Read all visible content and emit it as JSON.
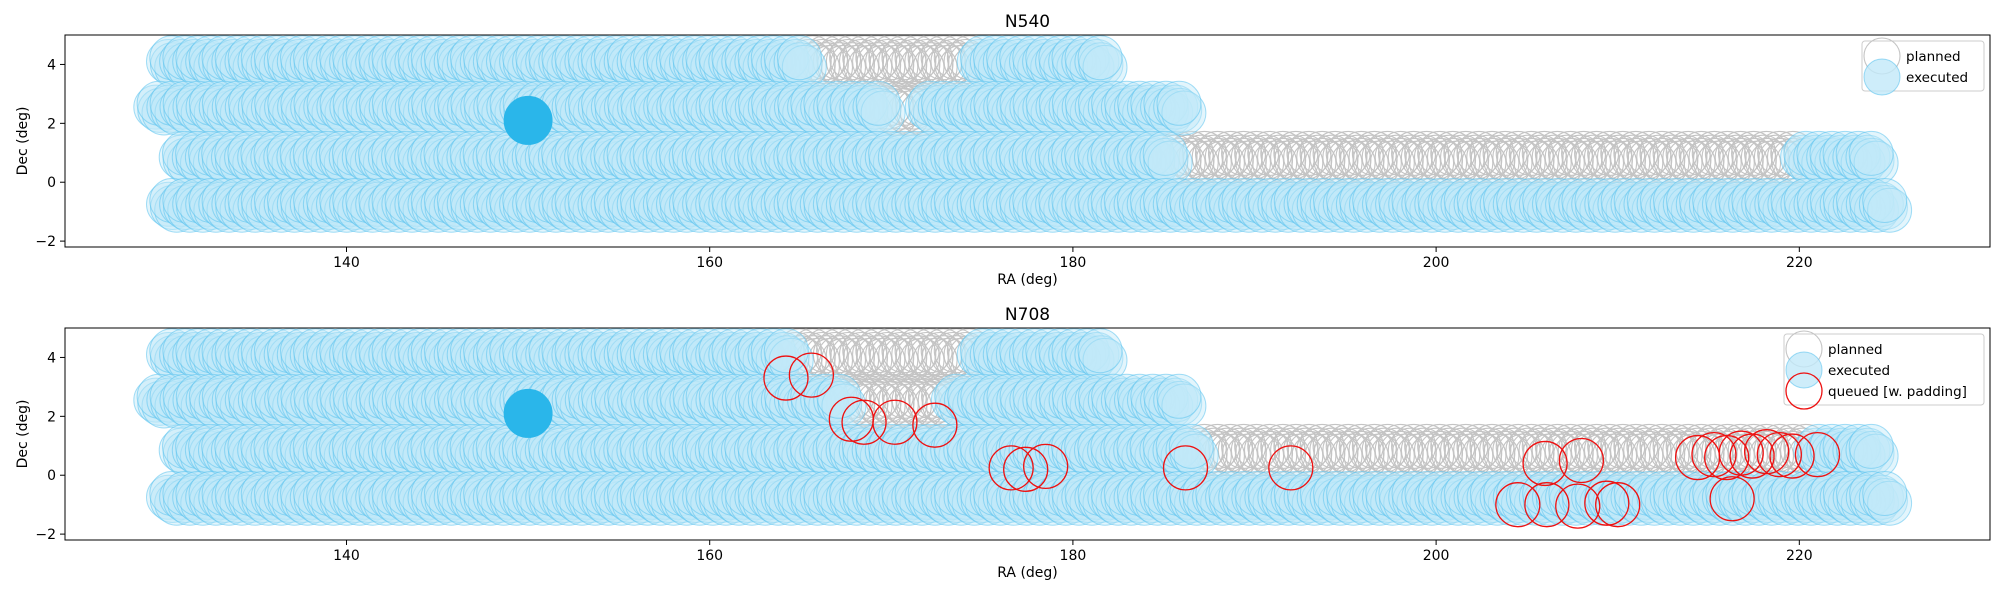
{
  "chart_data": [
    {
      "type": "scatter",
      "title": "N540",
      "xlabel": "RA (deg)",
      "ylabel": "Dec (deg)",
      "xlim": [
        124.5,
        230.5
      ],
      "ylim": [
        -2.2,
        5.0
      ],
      "xticks": [
        140,
        160,
        180,
        200,
        220
      ],
      "yticks": [
        -2,
        0,
        2,
        4
      ],
      "legend_position": "top-right",
      "colors": {
        "planned": "#c4c4c4",
        "executed": "#5bc3ee",
        "executed_fill": "#c2e9f9",
        "highlight": "#2ab6ea"
      },
      "legend": [
        {
          "label": "planned",
          "style": "planned"
        },
        {
          "label": "executed",
          "style": "executed"
        }
      ],
      "rows": [
        {
          "dec": 4.1,
          "ra_start": 130.2,
          "ra_end": 181.8,
          "step": 0.72,
          "executed_ranges": [
            [
              130.2,
              165.0
            ],
            [
              174.6,
              181.8
            ]
          ]
        },
        {
          "dec": 2.55,
          "ra_start": 129.5,
          "ra_end": 186.3,
          "step": 0.72,
          "executed_ranges": [
            [
              129.5,
              169.8
            ],
            [
              171.6,
              186.3
            ]
          ]
        },
        {
          "dec": 0.85,
          "ra_start": 130.9,
          "ra_end": 224.1,
          "step": 0.72,
          "executed_ranges": [
            [
              130.9,
              185.4
            ],
            [
              219.5,
              224.1
            ]
          ]
        },
        {
          "dec": -0.75,
          "ra_start": 130.2,
          "ra_end": 224.8,
          "step": 0.72,
          "executed_ranges": [
            [
              130.2,
              224.8
            ]
          ]
        }
      ],
      "offsets": [
        {
          "dra": 0.0,
          "ddec": 0.0
        },
        {
          "dra": 0.22,
          "ddec": -0.11
        },
        {
          "dra": 0.45,
          "ddec": -0.2
        },
        {
          "dra": 0.18,
          "ddec": 0.13
        }
      ],
      "highlight": {
        "ra": 150.0,
        "dec": 2.1
      },
      "queued": []
    },
    {
      "type": "scatter",
      "title": "N708",
      "xlabel": "RA (deg)",
      "ylabel": "Dec (deg)",
      "xlim": [
        124.5,
        230.5
      ],
      "ylim": [
        -2.2,
        5.0
      ],
      "xticks": [
        140,
        160,
        180,
        200,
        220
      ],
      "yticks": [
        -2,
        0,
        2,
        4
      ],
      "legend_position": "top-right",
      "colors": {
        "planned": "#c4c4c4",
        "executed": "#5bc3ee",
        "executed_fill": "#c2e9f9",
        "highlight": "#2ab6ea",
        "queued": "#ee1111"
      },
      "legend": [
        {
          "label": "planned",
          "style": "planned"
        },
        {
          "label": "executed",
          "style": "executed"
        },
        {
          "label": "queued [w. padding]",
          "style": "queued"
        }
      ],
      "rows": [
        {
          "dec": 4.1,
          "ra_start": 130.2,
          "ra_end": 181.8,
          "step": 0.72,
          "executed_ranges": [
            [
              130.2,
              164.2
            ],
            [
              174.6,
              181.8
            ]
          ]
        },
        {
          "dec": 2.55,
          "ra_start": 129.5,
          "ra_end": 186.3,
          "step": 0.72,
          "executed_ranges": [
            [
              129.5,
              167.2
            ],
            [
              172.8,
              186.3
            ]
          ]
        },
        {
          "dec": 0.85,
          "ra_start": 130.9,
          "ra_end": 224.1,
          "step": 0.72,
          "executed_ranges": [
            [
              130.9,
              186.9
            ],
            [
              220.3,
              224.1
            ]
          ]
        },
        {
          "dec": -0.75,
          "ra_start": 130.2,
          "ra_end": 224.8,
          "step": 0.72,
          "executed_ranges": [
            [
              130.2,
              224.8
            ]
          ]
        }
      ],
      "offsets": [
        {
          "dra": 0.0,
          "ddec": 0.0
        },
        {
          "dra": 0.22,
          "ddec": -0.11
        },
        {
          "dra": 0.45,
          "ddec": -0.2
        },
        {
          "dra": 0.18,
          "ddec": 0.13
        }
      ],
      "highlight": {
        "ra": 150.0,
        "dec": 2.1
      },
      "queued": [
        {
          "ra": 164.2,
          "dec": 3.3
        },
        {
          "ra": 165.6,
          "dec": 3.4
        },
        {
          "ra": 167.8,
          "dec": 1.9
        },
        {
          "ra": 168.5,
          "dec": 1.8
        },
        {
          "ra": 170.2,
          "dec": 1.8
        },
        {
          "ra": 172.4,
          "dec": 1.7
        },
        {
          "ra": 176.6,
          "dec": 0.25
        },
        {
          "ra": 177.4,
          "dec": 0.2
        },
        {
          "ra": 178.5,
          "dec": 0.3
        },
        {
          "ra": 186.2,
          "dec": 0.25
        },
        {
          "ra": 192.0,
          "dec": 0.25
        },
        {
          "ra": 206.0,
          "dec": 0.4
        },
        {
          "ra": 208.0,
          "dec": 0.5
        },
        {
          "ra": 204.5,
          "dec": -1.0
        },
        {
          "ra": 206.1,
          "dec": -1.0
        },
        {
          "ra": 207.8,
          "dec": -1.05
        },
        {
          "ra": 209.4,
          "dec": -0.95
        },
        {
          "ra": 210.0,
          "dec": -1.0
        },
        {
          "ra": 214.4,
          "dec": 0.6
        },
        {
          "ra": 215.3,
          "dec": 0.7
        },
        {
          "ra": 216.0,
          "dec": 0.6
        },
        {
          "ra": 216.8,
          "dec": 0.75
        },
        {
          "ra": 217.4,
          "dec": 0.65
        },
        {
          "ra": 218.2,
          "dec": 0.8
        },
        {
          "ra": 218.9,
          "dec": 0.7
        },
        {
          "ra": 219.6,
          "dec": 0.65
        },
        {
          "ra": 221.0,
          "dec": 0.7
        },
        {
          "ra": 216.3,
          "dec": -0.8
        }
      ]
    }
  ]
}
